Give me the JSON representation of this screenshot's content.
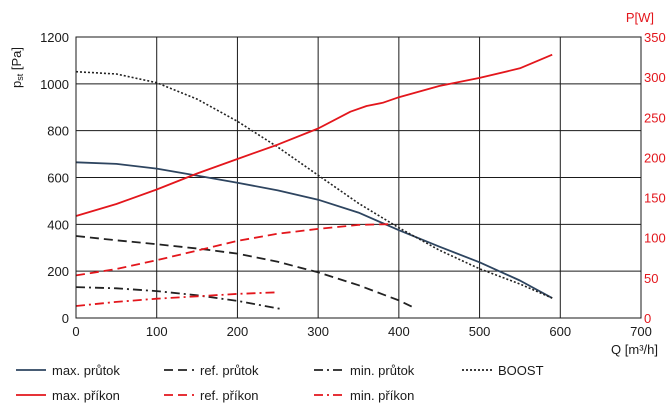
{
  "chart_data": {
    "type": "line",
    "xlabel": "Q [m³/h]",
    "ylabel_left": {
      "main": "p",
      "sub": "st",
      "rest": " [Pa]"
    },
    "ylabel_right": "P[W]",
    "xlim": [
      0,
      700
    ],
    "ylim_left": [
      0,
      1200
    ],
    "ylim_right": [
      0,
      350
    ],
    "xticks": [
      0,
      100,
      200,
      300,
      400,
      500,
      600,
      700
    ],
    "yticks_left": [
      0,
      200,
      400,
      600,
      800,
      1000,
      1200
    ],
    "yticks_right": [
      0,
      50,
      100,
      150,
      200,
      250,
      300,
      350
    ],
    "grid": true,
    "colors": {
      "pressure": "#2e4560",
      "power": "#e3161c",
      "boost": "#222222",
      "grid": "#1a1a1a"
    },
    "series": [
      {
        "name": "max. průtok",
        "axis": "left",
        "color": "#2e4560",
        "dash": "solid",
        "x": [
          0,
          50,
          100,
          150,
          200,
          250,
          300,
          350,
          400,
          450,
          500,
          550,
          590
        ],
        "y": [
          665,
          658,
          638,
          608,
          578,
          545,
          505,
          450,
          375,
          305,
          238,
          160,
          85
        ]
      },
      {
        "name": "ref. průtok",
        "axis": "left",
        "color": "#222222",
        "dash": "dashed",
        "x": [
          0,
          50,
          100,
          150,
          200,
          250,
          300,
          350,
          400,
          420
        ],
        "y": [
          350,
          332,
          315,
          297,
          275,
          240,
          195,
          140,
          75,
          42
        ]
      },
      {
        "name": "min. průtok",
        "axis": "left",
        "color": "#222222",
        "dash": "dashdot",
        "x": [
          0,
          50,
          100,
          150,
          200,
          230,
          255
        ],
        "y": [
          132,
          127,
          115,
          97,
          73,
          54,
          38
        ]
      },
      {
        "name": "BOOST",
        "axis": "left",
        "color": "#222222",
        "dash": "dotted",
        "x": [
          0,
          50,
          100,
          150,
          200,
          250,
          300,
          350,
          400,
          450,
          500,
          550,
          590
        ],
        "y": [
          1052,
          1042,
          1005,
          935,
          840,
          730,
          610,
          490,
          385,
          290,
          210,
          145,
          85
        ]
      },
      {
        "name": "max. příkon",
        "axis": "right",
        "color": "#e3161c",
        "dash": "solid",
        "x": [
          0,
          50,
          100,
          150,
          200,
          250,
          300,
          340,
          360,
          380,
          400,
          450,
          500,
          550,
          590
        ],
        "y": [
          127,
          142,
          160,
          180,
          198,
          216,
          236,
          257,
          264,
          268,
          275,
          289,
          299,
          311,
          328
        ]
      },
      {
        "name": "ref. příkon",
        "axis": "right",
        "color": "#e3161c",
        "dash": "dashed",
        "x": [
          0,
          50,
          100,
          150,
          200,
          250,
          300,
          350,
          390
        ],
        "y": [
          53,
          61,
          72,
          84,
          96,
          105,
          111,
          116,
          117
        ]
      },
      {
        "name": "min. příkon",
        "axis": "right",
        "color": "#e3161c",
        "dash": "dashdot",
        "x": [
          0,
          50,
          100,
          150,
          200,
          250
        ],
        "y": [
          15,
          20,
          24,
          27,
          30,
          32
        ]
      }
    ]
  }
}
